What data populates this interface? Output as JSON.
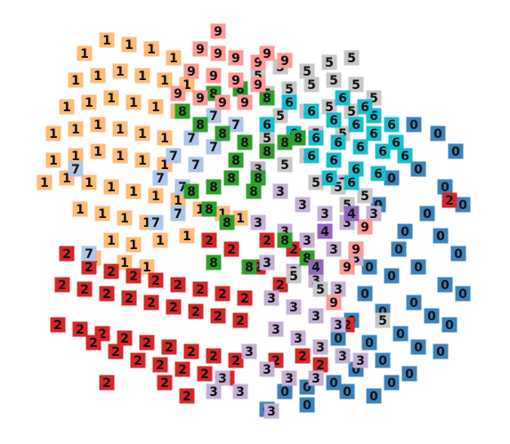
{
  "chart_data": {
    "type": "scatter",
    "title": "",
    "xlabel": "",
    "ylabel": "",
    "xlim": [
      0,
      573
    ],
    "ylim": [
      0,
      499
    ],
    "grid": false,
    "legend": "none",
    "marker": "digit-thumbnail",
    "series": [
      {
        "label": "0",
        "color": "#3b83bd",
        "points": [
          [
            465,
            140
          ],
          [
            492,
            150
          ],
          [
            512,
            170
          ],
          [
            470,
            190
          ],
          [
            500,
            210
          ],
          [
            520,
            230
          ],
          [
            480,
            240
          ],
          [
            455,
            260
          ],
          [
            495,
            265
          ],
          [
            515,
            285
          ],
          [
            470,
            300
          ],
          [
            440,
            310
          ],
          [
            500,
            320
          ],
          [
            520,
            330
          ],
          [
            465,
            340
          ],
          [
            430,
            350
          ],
          [
            485,
            355
          ],
          [
            505,
            365
          ],
          [
            450,
            375
          ],
          [
            415,
            385
          ],
          [
            470,
            390
          ],
          [
            495,
            395
          ],
          [
            430,
            405
          ],
          [
            400,
            415
          ],
          [
            460,
            420
          ],
          [
            375,
            430
          ],
          [
            345,
            435
          ],
          [
            320,
            440
          ],
          [
            390,
            440
          ],
          [
            420,
            445
          ],
          [
            300,
            460
          ],
          [
            345,
            455
          ],
          [
            440,
            200
          ],
          [
            425,
            230
          ],
          [
            448,
            280
          ],
          [
            415,
            300
          ],
          [
            410,
            330
          ],
          [
            395,
            360
          ],
          [
            380,
            380
          ],
          [
            440,
            430
          ]
        ]
      },
      {
        "label": "1",
        "color": "#ffbb78",
        "points": [
          [
            95,
            60
          ],
          [
            120,
            45
          ],
          [
            145,
            50
          ],
          [
            170,
            55
          ],
          [
            195,
            65
          ],
          [
            85,
            90
          ],
          [
            110,
            85
          ],
          [
            135,
            80
          ],
          [
            160,
            85
          ],
          [
            185,
            90
          ],
          [
            210,
            95
          ],
          [
            75,
            120
          ],
          [
            100,
            115
          ],
          [
            125,
            110
          ],
          [
            150,
            115
          ],
          [
            175,
            120
          ],
          [
            200,
            125
          ],
          [
            60,
            150
          ],
          [
            85,
            145
          ],
          [
            110,
            140
          ],
          [
            135,
            145
          ],
          [
            160,
            150
          ],
          [
            185,
            155
          ],
          [
            60,
            180
          ],
          [
            85,
            175
          ],
          [
            110,
            170
          ],
          [
            135,
            175
          ],
          [
            160,
            180
          ],
          [
            185,
            185
          ],
          [
            50,
            205
          ],
          [
            75,
            200
          ],
          [
            100,
            205
          ],
          [
            125,
            210
          ],
          [
            150,
            215
          ],
          [
            175,
            220
          ],
          [
            200,
            225
          ],
          [
            225,
            235
          ],
          [
            250,
            240
          ],
          [
            270,
            245
          ],
          [
            90,
            235
          ],
          [
            115,
            240
          ],
          [
            140,
            245
          ],
          [
            165,
            250
          ],
          [
            125,
            270
          ],
          [
            150,
            275
          ],
          [
            180,
            270
          ],
          [
            210,
            265
          ],
          [
            105,
            290
          ],
          [
            140,
            295
          ],
          [
            165,
            300
          ]
        ]
      },
      {
        "label": "2",
        "color": "#d62728",
        "points": [
          [
            75,
            285
          ],
          [
            100,
            300
          ],
          [
            125,
            305
          ],
          [
            150,
            310
          ],
          [
            175,
            315
          ],
          [
            200,
            320
          ],
          [
            225,
            325
          ],
          [
            250,
            330
          ],
          [
            275,
            335
          ],
          [
            70,
            320
          ],
          [
            95,
            325
          ],
          [
            120,
            330
          ],
          [
            145,
            335
          ],
          [
            170,
            340
          ],
          [
            195,
            345
          ],
          [
            220,
            350
          ],
          [
            245,
            355
          ],
          [
            270,
            360
          ],
          [
            65,
            365
          ],
          [
            90,
            370
          ],
          [
            115,
            375
          ],
          [
            140,
            380
          ],
          [
            165,
            385
          ],
          [
            190,
            390
          ],
          [
            215,
            395
          ],
          [
            240,
            400
          ],
          [
            265,
            405
          ],
          [
            105,
            385
          ],
          [
            130,
            395
          ],
          [
            155,
            405
          ],
          [
            180,
            410
          ],
          [
            205,
            415
          ],
          [
            230,
            420
          ],
          [
            255,
            425
          ],
          [
            120,
            430
          ],
          [
            185,
            430
          ],
          [
            210,
            445
          ],
          [
            235,
            270
          ],
          [
            260,
            280
          ],
          [
            300,
            270
          ],
          [
            330,
            280
          ],
          [
            290,
            300
          ],
          [
            315,
            320
          ],
          [
            310,
            405
          ],
          [
            340,
            400
          ],
          [
            390,
            365
          ],
          [
            360,
            410
          ],
          [
            505,
            225
          ]
        ]
      },
      {
        "label": "3",
        "color": "#c5b0d5",
        "points": [
          [
            290,
            190
          ],
          [
            315,
            215
          ],
          [
            340,
            230
          ],
          [
            365,
            240
          ],
          [
            390,
            250
          ],
          [
            290,
            250
          ],
          [
            320,
            260
          ],
          [
            345,
            270
          ],
          [
            375,
            280
          ],
          [
            400,
            290
          ],
          [
            300,
            295
          ],
          [
            330,
            305
          ],
          [
            355,
            315
          ],
          [
            380,
            325
          ],
          [
            305,
            335
          ],
          [
            330,
            345
          ],
          [
            355,
            355
          ],
          [
            380,
            365
          ],
          [
            310,
            370
          ],
          [
            335,
            380
          ],
          [
            360,
            390
          ],
          [
            385,
            400
          ],
          [
            280,
            395
          ],
          [
            300,
            415
          ],
          [
            325,
            425
          ],
          [
            355,
            425
          ],
          [
            405,
            405
          ],
          [
            250,
            425
          ],
          [
            270,
            440
          ],
          [
            240,
            440
          ],
          [
            305,
            462
          ],
          [
            385,
            205
          ],
          [
            420,
            240
          ]
        ]
      },
      {
        "label": "5",
        "color": "#c7c7c7",
        "points": [
          [
            290,
            85
          ],
          [
            315,
            75
          ],
          [
            345,
            80
          ],
          [
            370,
            70
          ],
          [
            395,
            65
          ],
          [
            300,
            105
          ],
          [
            325,
            100
          ],
          [
            350,
            95
          ],
          [
            375,
            90
          ],
          [
            400,
            95
          ],
          [
            420,
            110
          ],
          [
            315,
            130
          ],
          [
            345,
            125
          ],
          [
            370,
            120
          ],
          [
            395,
            125
          ],
          [
            300,
            155
          ],
          [
            330,
            150
          ],
          [
            355,
            150
          ],
          [
            385,
            150
          ],
          [
            320,
            185
          ],
          [
            345,
            175
          ],
          [
            375,
            180
          ],
          [
            355,
            205
          ],
          [
            380,
            210
          ],
          [
            390,
            230
          ],
          [
            330,
            310
          ],
          [
            360,
            325
          ],
          [
            430,
            360
          ],
          [
            410,
            220
          ]
        ]
      },
      {
        "label": "6",
        "color": "#17becf",
        "points": [
          [
            325,
            115
          ],
          [
            350,
            125
          ],
          [
            375,
            135
          ],
          [
            400,
            140
          ],
          [
            420,
            130
          ],
          [
            440,
            140
          ],
          [
            300,
            140
          ],
          [
            330,
            150
          ],
          [
            355,
            155
          ],
          [
            380,
            160
          ],
          [
            405,
            165
          ],
          [
            430,
            170
          ],
          [
            350,
            175
          ],
          [
            375,
            180
          ],
          [
            400,
            190
          ],
          [
            425,
            195
          ],
          [
            420,
            150
          ],
          [
            445,
            160
          ],
          [
            370,
            200
          ],
          [
            395,
            205
          ],
          [
            410,
            120
          ],
          [
            385,
            110
          ],
          [
            455,
            175
          ]
        ]
      },
      {
        "label": "7",
        "color": "#aec7e8",
        "points": [
          [
            240,
            130
          ],
          [
            265,
            140
          ],
          [
            215,
            155
          ],
          [
            240,
            165
          ],
          [
            195,
            175
          ],
          [
            220,
            185
          ],
          [
            250,
            150
          ],
          [
            180,
            200
          ],
          [
            205,
            210
          ],
          [
            85,
            190
          ],
          [
            100,
            285
          ],
          [
            175,
            250
          ],
          [
            200,
            240
          ]
        ]
      },
      {
        "label": "8",
        "color": "#2ca02c",
        "points": [
          [
            240,
            105
          ],
          [
            270,
            100
          ],
          [
            300,
            110
          ],
          [
            205,
            125
          ],
          [
            225,
            140
          ],
          [
            250,
            150
          ],
          [
            275,
            160
          ],
          [
            300,
            170
          ],
          [
            320,
            160
          ],
          [
            335,
            155
          ],
          [
            265,
            180
          ],
          [
            290,
            200
          ],
          [
            215,
            215
          ],
          [
            240,
            210
          ],
          [
            260,
            200
          ],
          [
            285,
            215
          ],
          [
            255,
            250
          ],
          [
            235,
            235
          ],
          [
            240,
            295
          ],
          [
            280,
            300
          ],
          [
            345,
            290
          ],
          [
            320,
            270
          ]
        ]
      },
      {
        "label": "9",
        "color": "#ff9896",
        "points": [
          [
            245,
            35
          ],
          [
            225,
            55
          ],
          [
            245,
            60
          ],
          [
            265,
            65
          ],
          [
            290,
            70
          ],
          [
            320,
            68
          ],
          [
            215,
            80
          ],
          [
            240,
            85
          ],
          [
            265,
            90
          ],
          [
            290,
            95
          ],
          [
            225,
            110
          ],
          [
            250,
            115
          ],
          [
            275,
            115
          ],
          [
            200,
            105
          ],
          [
            300,
            60
          ],
          [
            400,
            280
          ],
          [
            390,
            300
          ],
          [
            375,
            340
          ],
          [
            410,
            255
          ]
        ]
      },
      {
        "label": "4",
        "color": "#9467bd",
        "points": [
          [
            365,
            260
          ],
          [
            395,
            240
          ],
          [
            355,
            300
          ]
        ]
      }
    ]
  }
}
